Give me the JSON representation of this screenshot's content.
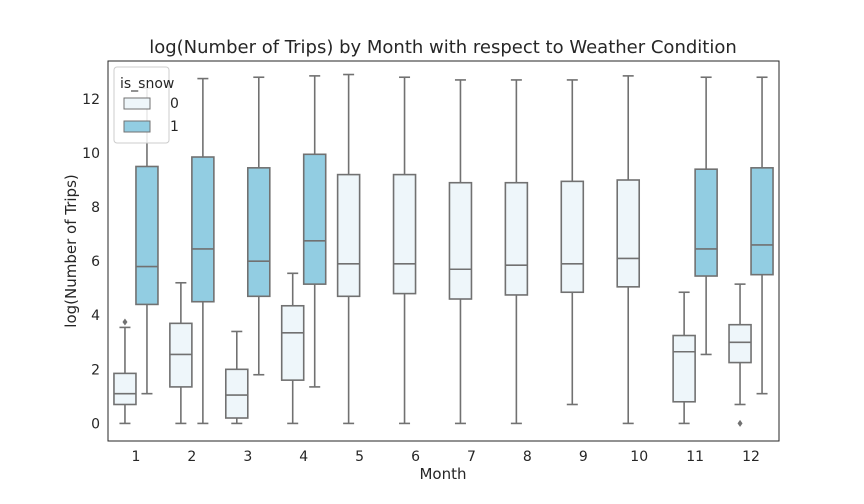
{
  "chart_data": {
    "type": "boxplot",
    "title": "log(Number of Trips) by Month with respect to Weather Condition",
    "xlabel": "Month",
    "ylabel": "log(Number of Trips)",
    "categories": [
      "1",
      "2",
      "3",
      "4",
      "5",
      "6",
      "7",
      "8",
      "9",
      "10",
      "11",
      "12"
    ],
    "ylim": [
      -0.65,
      13.4
    ],
    "yticks": [
      0,
      2,
      4,
      6,
      8,
      10,
      12
    ],
    "grid": false,
    "legend": {
      "title": "is_snow",
      "placement": "top-left",
      "entries": [
        {
          "label": "0",
          "color": "#eef6fa"
        },
        {
          "label": "1",
          "color": "#92cde2"
        }
      ]
    },
    "series": [
      {
        "name": "0",
        "color": "#eef6fa",
        "boxes": [
          {
            "month": "1",
            "whisker_low": 0,
            "q1": 0.7,
            "median": 1.1,
            "q3": 1.85,
            "whisker_high": 3.55,
            "outliers": [
              3.75
            ]
          },
          {
            "month": "2",
            "whisker_low": 0,
            "q1": 1.35,
            "median": 2.55,
            "q3": 3.7,
            "whisker_high": 5.2,
            "outliers": []
          },
          {
            "month": "3",
            "whisker_low": 0,
            "q1": 0.2,
            "median": 1.05,
            "q3": 2.0,
            "whisker_high": 3.4,
            "outliers": []
          },
          {
            "month": "4",
            "whisker_low": 0,
            "q1": 1.6,
            "median": 3.35,
            "q3": 4.35,
            "whisker_high": 5.55,
            "outliers": []
          },
          {
            "month": "5",
            "whisker_low": 0,
            "q1": 4.7,
            "median": 5.9,
            "q3": 9.2,
            "whisker_high": 12.9,
            "outliers": []
          },
          {
            "month": "6",
            "whisker_low": 0,
            "q1": 4.8,
            "median": 5.9,
            "q3": 9.2,
            "whisker_high": 12.8,
            "outliers": []
          },
          {
            "month": "7",
            "whisker_low": 0,
            "q1": 4.6,
            "median": 5.7,
            "q3": 8.9,
            "whisker_high": 12.7,
            "outliers": []
          },
          {
            "month": "8",
            "whisker_low": 0,
            "q1": 4.75,
            "median": 5.85,
            "q3": 8.9,
            "whisker_high": 12.7,
            "outliers": []
          },
          {
            "month": "9",
            "whisker_low": 0.7,
            "q1": 4.85,
            "median": 5.9,
            "q3": 8.95,
            "whisker_high": 12.7,
            "outliers": []
          },
          {
            "month": "10",
            "whisker_low": 0,
            "q1": 5.05,
            "median": 6.1,
            "q3": 9.0,
            "whisker_high": 12.85,
            "outliers": []
          },
          {
            "month": "11",
            "whisker_low": 0,
            "q1": 0.8,
            "median": 2.65,
            "q3": 3.25,
            "whisker_high": 4.85,
            "outliers": []
          },
          {
            "month": "12",
            "whisker_low": 0.7,
            "q1": 2.25,
            "median": 3.0,
            "q3": 3.65,
            "whisker_high": 5.15,
            "outliers": [
              0.0
            ]
          }
        ]
      },
      {
        "name": "1",
        "color": "#92cde2",
        "boxes": [
          {
            "month": "1",
            "whisker_low": 1.1,
            "q1": 4.4,
            "median": 5.8,
            "q3": 9.5,
            "whisker_high": 12.4,
            "outliers": []
          },
          {
            "month": "2",
            "whisker_low": 0,
            "q1": 4.5,
            "median": 6.45,
            "q3": 9.85,
            "whisker_high": 12.75,
            "outliers": []
          },
          {
            "month": "3",
            "whisker_low": 1.8,
            "q1": 4.7,
            "median": 6.0,
            "q3": 9.45,
            "whisker_high": 12.8,
            "outliers": []
          },
          {
            "month": "4",
            "whisker_low": 1.35,
            "q1": 5.15,
            "median": 6.75,
            "q3": 9.95,
            "whisker_high": 12.85,
            "outliers": []
          },
          {
            "month": "11",
            "whisker_low": 2.55,
            "q1": 5.45,
            "median": 6.45,
            "q3": 9.4,
            "whisker_high": 12.8,
            "outliers": []
          },
          {
            "month": "12",
            "whisker_low": 1.1,
            "q1": 5.5,
            "median": 6.6,
            "q3": 9.45,
            "whisker_high": 12.8,
            "outliers": []
          }
        ]
      }
    ]
  }
}
